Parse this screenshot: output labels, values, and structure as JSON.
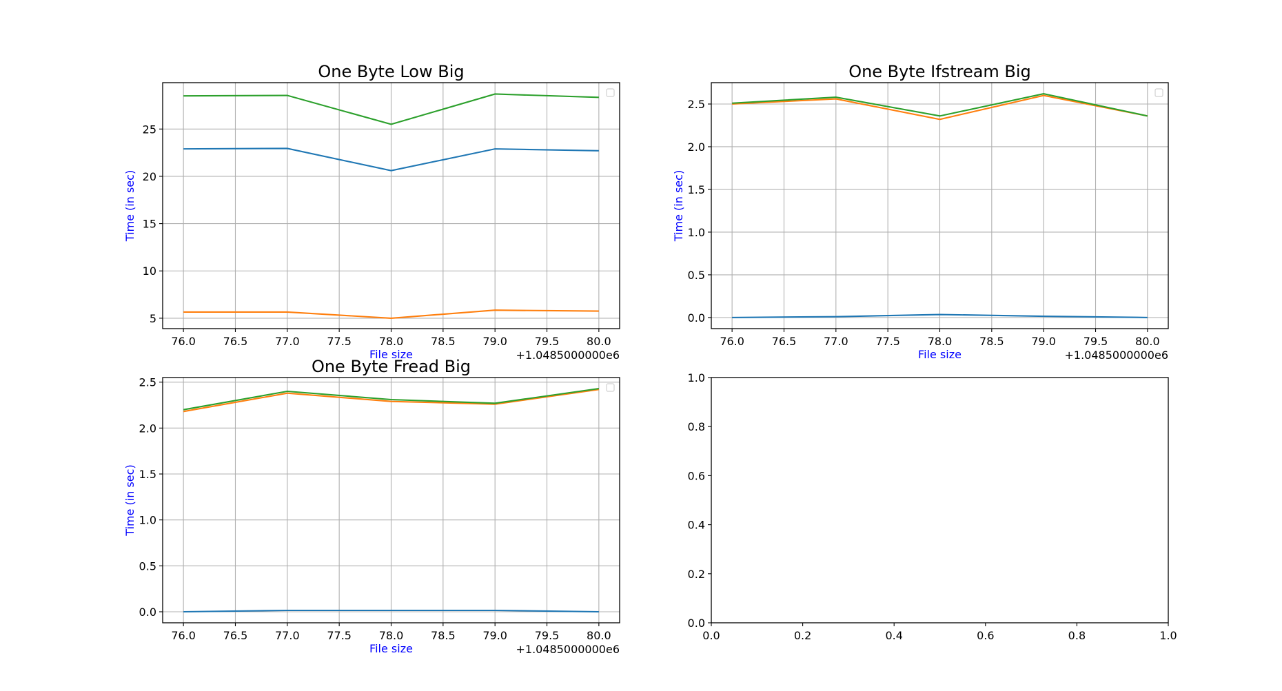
{
  "chart_data": [
    {
      "type": "line",
      "title": "One Byte Low Big",
      "xlabel": "File size",
      "ylabel": "Time (in sec)",
      "x_offset_label": "+1.0485000000e6",
      "x": [
        76,
        77,
        78,
        79,
        80
      ],
      "xlim": [
        75.8,
        80.2
      ],
      "ylim": [
        3.9,
        29.9
      ],
      "xticks": [
        "76.0",
        "76.5",
        "77.0",
        "77.5",
        "78.0",
        "78.5",
        "79.0",
        "79.5",
        "80.0"
      ],
      "yticks": [
        "5",
        "10",
        "15",
        "20",
        "25"
      ],
      "grid": true,
      "legend": "top-right (empty)",
      "series": [
        {
          "color": "#1f77b4",
          "values": [
            22.9,
            22.95,
            20.6,
            22.9,
            22.7
          ]
        },
        {
          "color": "#ff7f0e",
          "values": [
            5.65,
            5.65,
            5.0,
            5.85,
            5.75
          ]
        },
        {
          "color": "#2ca02c",
          "values": [
            28.5,
            28.55,
            25.5,
            28.7,
            28.35
          ]
        }
      ]
    },
    {
      "type": "line",
      "title": "One Byte Ifstream Big",
      "xlabel": "File size",
      "ylabel": "Time (in sec)",
      "x_offset_label": "+1.0485000000e6",
      "x": [
        76,
        77,
        78,
        79,
        80
      ],
      "xlim": [
        75.8,
        80.2
      ],
      "ylim": [
        -0.13,
        2.75
      ],
      "xticks": [
        "76.0",
        "76.5",
        "77.0",
        "77.5",
        "78.0",
        "78.5",
        "79.0",
        "79.5",
        "80.0"
      ],
      "yticks": [
        "0.0",
        "0.5",
        "1.0",
        "1.5",
        "2.0",
        "2.5"
      ],
      "grid": true,
      "legend": "top-right (empty)",
      "series": [
        {
          "color": "#1f77b4",
          "values": [
            0.0,
            0.01,
            0.035,
            0.015,
            0.0
          ]
        },
        {
          "color": "#ff7f0e",
          "values": [
            2.5,
            2.56,
            2.32,
            2.6,
            2.36
          ]
        },
        {
          "color": "#2ca02c",
          "values": [
            2.51,
            2.58,
            2.36,
            2.62,
            2.36
          ]
        }
      ]
    },
    {
      "type": "line",
      "title": "One Byte Fread Big",
      "xlabel": "File size",
      "ylabel": "Time (in sec)",
      "x_offset_label": "+1.0485000000e6",
      "x": [
        76,
        77,
        78,
        79,
        80
      ],
      "xlim": [
        75.8,
        80.2
      ],
      "ylim": [
        -0.12,
        2.55
      ],
      "xticks": [
        "76.0",
        "76.5",
        "77.0",
        "77.5",
        "78.0",
        "78.5",
        "79.0",
        "79.5",
        "80.0"
      ],
      "yticks": [
        "0.0",
        "0.5",
        "1.0",
        "1.5",
        "2.0",
        "2.5"
      ],
      "grid": true,
      "legend": "top-right (empty)",
      "series": [
        {
          "color": "#1f77b4",
          "values": [
            0.0,
            0.015,
            0.015,
            0.015,
            0.0
          ]
        },
        {
          "color": "#ff7f0e",
          "values": [
            2.18,
            2.38,
            2.29,
            2.26,
            2.42
          ]
        },
        {
          "color": "#2ca02c",
          "values": [
            2.2,
            2.4,
            2.31,
            2.27,
            2.43
          ]
        }
      ]
    },
    {
      "type": "line",
      "title": "",
      "xlabel": "",
      "ylabel": "",
      "x_offset_label": "",
      "x": [],
      "xlim": [
        0,
        1
      ],
      "ylim": [
        0,
        1
      ],
      "xticks": [
        "0.0",
        "0.2",
        "0.4",
        "0.6",
        "0.8",
        "1.0"
      ],
      "yticks": [
        "0.0",
        "0.2",
        "0.4",
        "0.6",
        "0.8",
        "1.0"
      ],
      "grid": false,
      "legend": "none",
      "series": []
    }
  ]
}
